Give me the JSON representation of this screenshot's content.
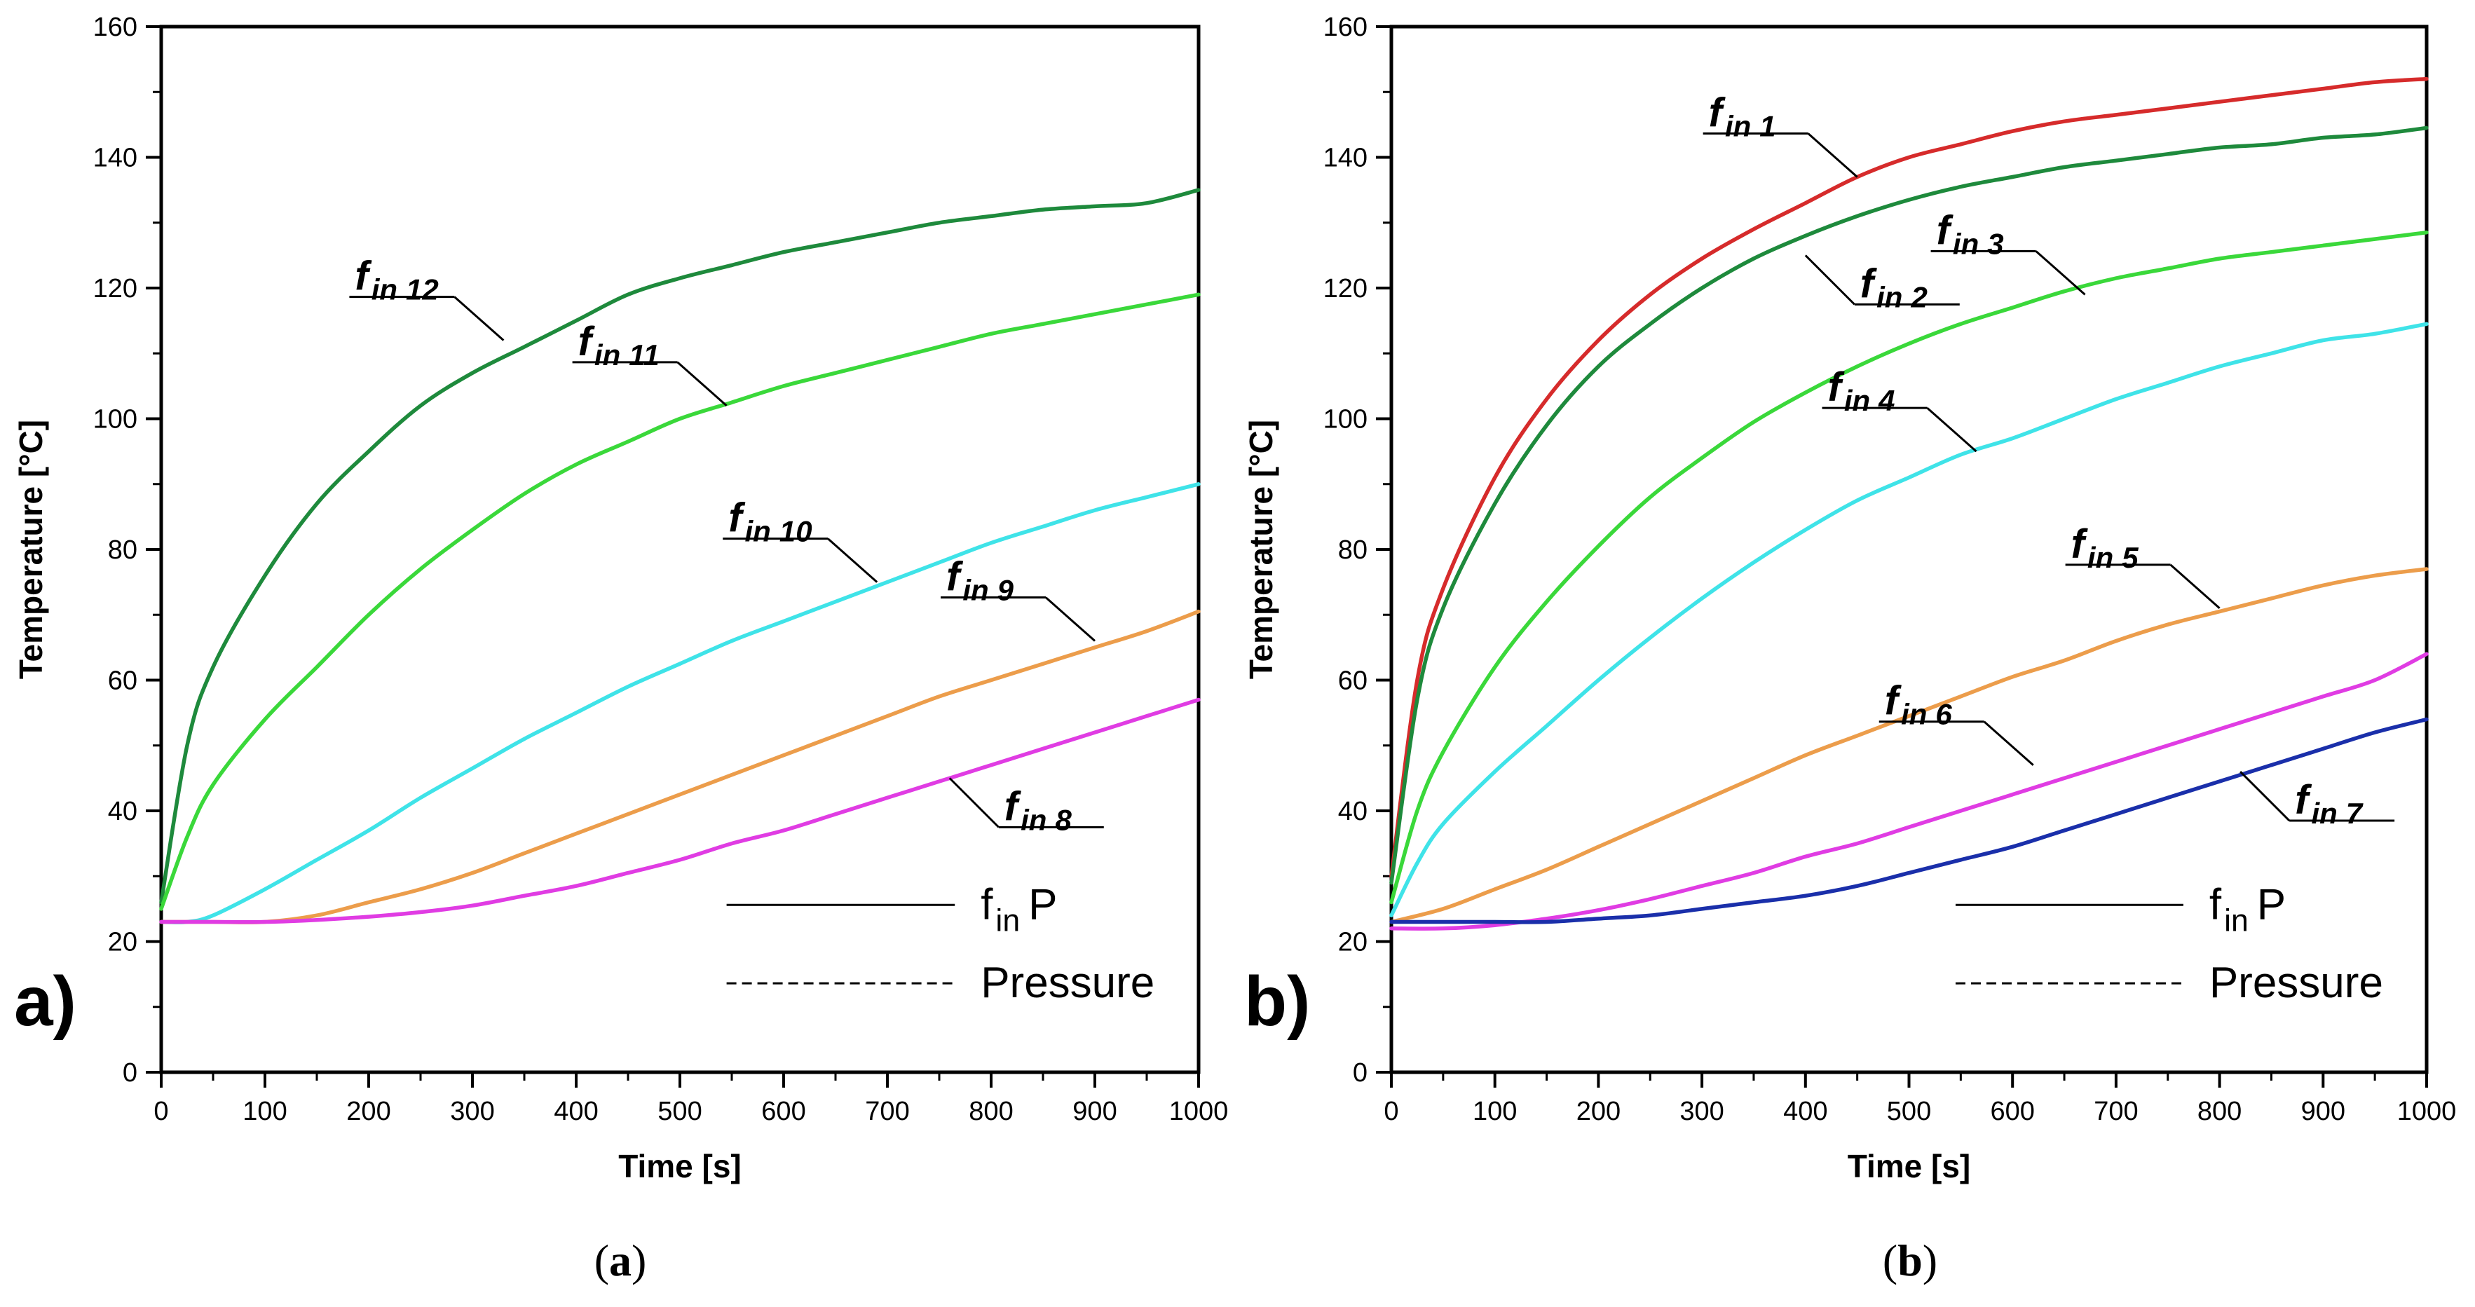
{
  "chart_data": [
    {
      "type": "line",
      "panel": "a)",
      "caption": {
        "open": "(",
        "letter": "a",
        "close": ")"
      },
      "xlabel": "Time [s]",
      "ylabel": "Temperature [°C]",
      "xlim": [
        0,
        1000
      ],
      "ylim": [
        0,
        160
      ],
      "xticks": [
        0,
        100,
        200,
        300,
        400,
        500,
        600,
        700,
        800,
        900,
        1000
      ],
      "yticks": [
        0,
        20,
        40,
        60,
        80,
        100,
        120,
        140,
        160
      ],
      "legend": {
        "position": "bottom-right",
        "items": [
          {
            "label_main": "f",
            "label_sub": "in",
            "label_tail": "P",
            "style": "solid"
          },
          {
            "label_main": "Pressure",
            "label_sub": "",
            "label_tail": "",
            "style": "dashed"
          }
        ]
      },
      "series": [
        {
          "name": "fin 12",
          "label_main": "f",
          "label_sub": "in",
          "label_num": "12",
          "color": "#1e8a3c",
          "label_anchor": [
            330,
            112
          ],
          "x": [
            0,
            25,
            50,
            100,
            150,
            200,
            250,
            300,
            350,
            400,
            450,
            500,
            550,
            600,
            650,
            700,
            750,
            800,
            850,
            900,
            950,
            1000
          ],
          "y": [
            26,
            50,
            62,
            76,
            87,
            95,
            102,
            107,
            111,
            115,
            119,
            121.5,
            123.5,
            125.5,
            127,
            128.5,
            130,
            131,
            132,
            132.5,
            133,
            135
          ]
        },
        {
          "name": "fin 11",
          "label_main": "f",
          "label_sub": "in",
          "label_num": "11",
          "color": "#3ad83a",
          "label_anchor": [
            545,
            102
          ],
          "x": [
            0,
            25,
            50,
            100,
            150,
            200,
            250,
            300,
            350,
            400,
            450,
            500,
            550,
            600,
            650,
            700,
            750,
            800,
            850,
            900,
            950,
            1000
          ],
          "y": [
            25,
            36,
            44,
            54,
            62,
            70,
            77,
            83,
            88.5,
            93,
            96.5,
            100,
            102.5,
            105,
            107,
            109,
            111,
            113,
            114.5,
            116,
            117.5,
            119
          ]
        },
        {
          "name": "fin 10",
          "label_main": "f",
          "label_sub": "in",
          "label_num": "10",
          "color": "#3fe3e8",
          "label_anchor": [
            690,
            75
          ],
          "x": [
            0,
            25,
            50,
            100,
            150,
            200,
            250,
            300,
            350,
            400,
            450,
            500,
            550,
            600,
            650,
            700,
            750,
            800,
            850,
            900,
            950,
            1000
          ],
          "y": [
            23,
            23,
            24,
            28,
            32.5,
            37,
            42,
            46.5,
            51,
            55,
            59,
            62.5,
            66,
            69,
            72,
            75,
            78,
            81,
            83.5,
            86,
            88,
            90
          ]
        },
        {
          "name": "fin 9",
          "label_main": "f",
          "label_sub": "in",
          "label_num": "9",
          "color": "#ec9d4b",
          "label_anchor": [
            900,
            66
          ],
          "x": [
            0,
            50,
            100,
            150,
            200,
            250,
            300,
            350,
            400,
            450,
            500,
            550,
            600,
            650,
            700,
            750,
            800,
            850,
            900,
            950,
            1000
          ],
          "y": [
            23,
            23,
            23,
            24,
            26,
            28,
            30.5,
            33.5,
            36.5,
            39.5,
            42.5,
            45.5,
            48.5,
            51.5,
            54.5,
            57.5,
            60,
            62.5,
            65,
            67.5,
            70.5
          ]
        },
        {
          "name": "fin 8",
          "label_main": "f",
          "label_sub": "in",
          "label_num": "8",
          "color": "#e03ce3",
          "label_anchor": [
            760,
            45
          ],
          "x": [
            0,
            50,
            100,
            150,
            200,
            250,
            300,
            350,
            400,
            450,
            500,
            550,
            600,
            650,
            700,
            750,
            800,
            850,
            900,
            950,
            1000
          ],
          "y": [
            23,
            23,
            23,
            23.3,
            23.8,
            24.5,
            25.5,
            27,
            28.5,
            30.5,
            32.5,
            35,
            37,
            39.5,
            42,
            44.5,
            47,
            49.5,
            52,
            54.5,
            57
          ]
        }
      ]
    },
    {
      "type": "line",
      "panel": "b)",
      "caption": {
        "open": "(",
        "letter": "b",
        "close": ")"
      },
      "xlabel": "Time [s]",
      "ylabel": "Temperature [°C]",
      "xlim": [
        0,
        1000
      ],
      "ylim": [
        0,
        160
      ],
      "xticks": [
        0,
        100,
        200,
        300,
        400,
        500,
        600,
        700,
        800,
        900,
        1000
      ],
      "yticks": [
        0,
        20,
        40,
        60,
        80,
        100,
        120,
        140,
        160
      ],
      "legend": {
        "position": "bottom-right",
        "items": [
          {
            "label_main": "f",
            "label_sub": "in",
            "label_tail": "P",
            "style": "solid"
          },
          {
            "label_main": "Pressure",
            "label_sub": "",
            "label_tail": "",
            "style": "dashed"
          }
        ]
      },
      "series": [
        {
          "name": "fin 1",
          "label_main": "f",
          "label_sub": "in",
          "label_num": "1",
          "color": "#d62b2b",
          "label_anchor": [
            450,
            137
          ],
          "x": [
            0,
            25,
            50,
            100,
            150,
            200,
            250,
            300,
            350,
            400,
            450,
            500,
            550,
            600,
            650,
            700,
            750,
            800,
            850,
            900,
            950,
            1000
          ],
          "y": [
            30,
            60,
            74,
            91,
            103,
            112,
            119,
            124.5,
            129,
            133,
            137,
            140,
            142,
            144,
            145.5,
            146.5,
            147.5,
            148.5,
            149.5,
            150.5,
            151.5,
            152
          ]
        },
        {
          "name": "fin 2",
          "label_main": "f",
          "label_sub": "in",
          "label_num": "2",
          "color": "#1e8a3c",
          "label_anchor": [
            400,
            125
          ],
          "x": [
            0,
            25,
            50,
            100,
            150,
            200,
            250,
            300,
            350,
            400,
            450,
            500,
            550,
            600,
            650,
            700,
            750,
            800,
            850,
            900,
            950,
            1000
          ],
          "y": [
            29,
            57,
            71,
            87,
            99,
            108,
            114.5,
            120,
            124.5,
            128,
            131,
            133.5,
            135.5,
            137,
            138.5,
            139.5,
            140.5,
            141.5,
            142,
            143,
            143.5,
            144.5
          ]
        },
        {
          "name": "fin 3",
          "label_main": "f",
          "label_sub": "in",
          "label_num": "3",
          "color": "#3ad83a",
          "label_anchor": [
            670,
            119
          ],
          "x": [
            0,
            25,
            50,
            100,
            150,
            200,
            250,
            300,
            350,
            400,
            450,
            500,
            550,
            600,
            650,
            700,
            750,
            800,
            850,
            900,
            950,
            1000
          ],
          "y": [
            26,
            40,
            49,
            62,
            72,
            80.5,
            88,
            94,
            99.5,
            104,
            108,
            111.5,
            114.5,
            117,
            119.5,
            121.5,
            123,
            124.5,
            125.5,
            126.5,
            127.5,
            128.5
          ]
        },
        {
          "name": "fin 4",
          "label_main": "f",
          "label_sub": "in",
          "label_num": "4",
          "color": "#3fe3e8",
          "label_anchor": [
            565,
            95
          ],
          "x": [
            0,
            25,
            50,
            100,
            150,
            200,
            250,
            300,
            350,
            400,
            450,
            500,
            550,
            600,
            650,
            700,
            750,
            800,
            850,
            900,
            950,
            1000
          ],
          "y": [
            24,
            32,
            38,
            46,
            53,
            60,
            66.5,
            72.5,
            78,
            83,
            87.5,
            91,
            94.5,
            97,
            100,
            103,
            105.5,
            108,
            110,
            112,
            113,
            114.5
          ]
        },
        {
          "name": "fin 5",
          "label_main": "f",
          "label_sub": "in",
          "label_num": "5",
          "color": "#ec9d4b",
          "label_anchor": [
            800,
            71
          ],
          "x": [
            0,
            50,
            100,
            150,
            200,
            250,
            300,
            350,
            400,
            450,
            500,
            550,
            600,
            650,
            700,
            750,
            800,
            850,
            900,
            950,
            1000
          ],
          "y": [
            23,
            25,
            28,
            31,
            34.5,
            38,
            41.5,
            45,
            48.5,
            51.5,
            54.5,
            57.5,
            60.5,
            63,
            66,
            68.5,
            70.5,
            72.5,
            74.5,
            76,
            77
          ]
        },
        {
          "name": "fin 6",
          "label_main": "f",
          "label_sub": "in",
          "label_num": "6",
          "color": "#e03ce3",
          "label_anchor": [
            620,
            47
          ],
          "x": [
            0,
            50,
            100,
            150,
            200,
            250,
            300,
            350,
            400,
            450,
            500,
            550,
            600,
            650,
            700,
            750,
            800,
            850,
            900,
            950,
            1000
          ],
          "y": [
            22,
            22,
            22.5,
            23.5,
            24.8,
            26.5,
            28.5,
            30.5,
            33,
            35,
            37.5,
            40,
            42.5,
            45,
            47.5,
            50,
            52.5,
            55,
            57.5,
            60,
            64
          ]
        },
        {
          "name": "fin 7",
          "label_main": "f",
          "label_sub": "in",
          "label_num": "7",
          "color": "#1a2faa",
          "label_anchor": [
            820,
            46
          ],
          "x": [
            0,
            50,
            100,
            150,
            200,
            250,
            300,
            350,
            400,
            450,
            500,
            550,
            600,
            650,
            700,
            750,
            800,
            850,
            900,
            950,
            1000
          ],
          "y": [
            23,
            23,
            23,
            23,
            23.5,
            24,
            25,
            26,
            27,
            28.5,
            30.5,
            32.5,
            34.5,
            37,
            39.5,
            42,
            44.5,
            47,
            49.5,
            52,
            54
          ]
        }
      ]
    }
  ]
}
